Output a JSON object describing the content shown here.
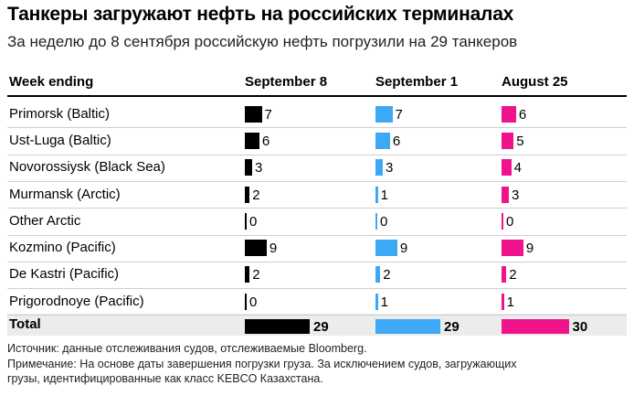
{
  "title": "Танкеры загружают нефть на российских терминалах",
  "subtitle": "За неделю до 8 сентября российскую нефть погрузили на 29 танкеров",
  "header": {
    "row_label": "Week ending",
    "columns": [
      "September 8",
      "September 1",
      "August 25"
    ]
  },
  "colors": {
    "september_8": "#000000",
    "september_1": "#3da8f5",
    "august_25": "#f0148c",
    "total_bg": "#ececec"
  },
  "chart_data": {
    "type": "bar",
    "title": "Танкеры загружают нефть на российских терминалах",
    "subtitle": "За неделю до 8 сентября российскую нефть погрузили на 29 танкеров",
    "row_header": "Week ending",
    "categories": [
      "Primorsk (Baltic)",
      "Ust-Luga (Baltic)",
      "Novorossiysk (Black Sea)",
      "Murmansk (Arctic)",
      "Other Arctic",
      "Kozmino (Pacific)",
      "De Kastri (Pacific)",
      "Prigorodnoye (Pacific)"
    ],
    "series": [
      {
        "name": "September 8",
        "values": [
          7,
          6,
          3,
          2,
          0,
          9,
          2,
          0
        ],
        "total": 29
      },
      {
        "name": "September 1",
        "values": [
          7,
          6,
          3,
          1,
          0,
          9,
          2,
          1
        ],
        "total": 29
      },
      {
        "name": "August 25",
        "values": [
          6,
          5,
          4,
          3,
          0,
          9,
          2,
          1
        ],
        "total": 30
      }
    ],
    "total_label": "Total"
  },
  "footer": {
    "source": "Источник: данные отслеживания судов, отслеживаемые Bloomberg.",
    "note_line1": "Примечание: На основе даты завершения погрузки груза. За исключением судов, загружающих",
    "note_line2": "грузы, идентифицированные как класс KEBCO Казахстана."
  }
}
